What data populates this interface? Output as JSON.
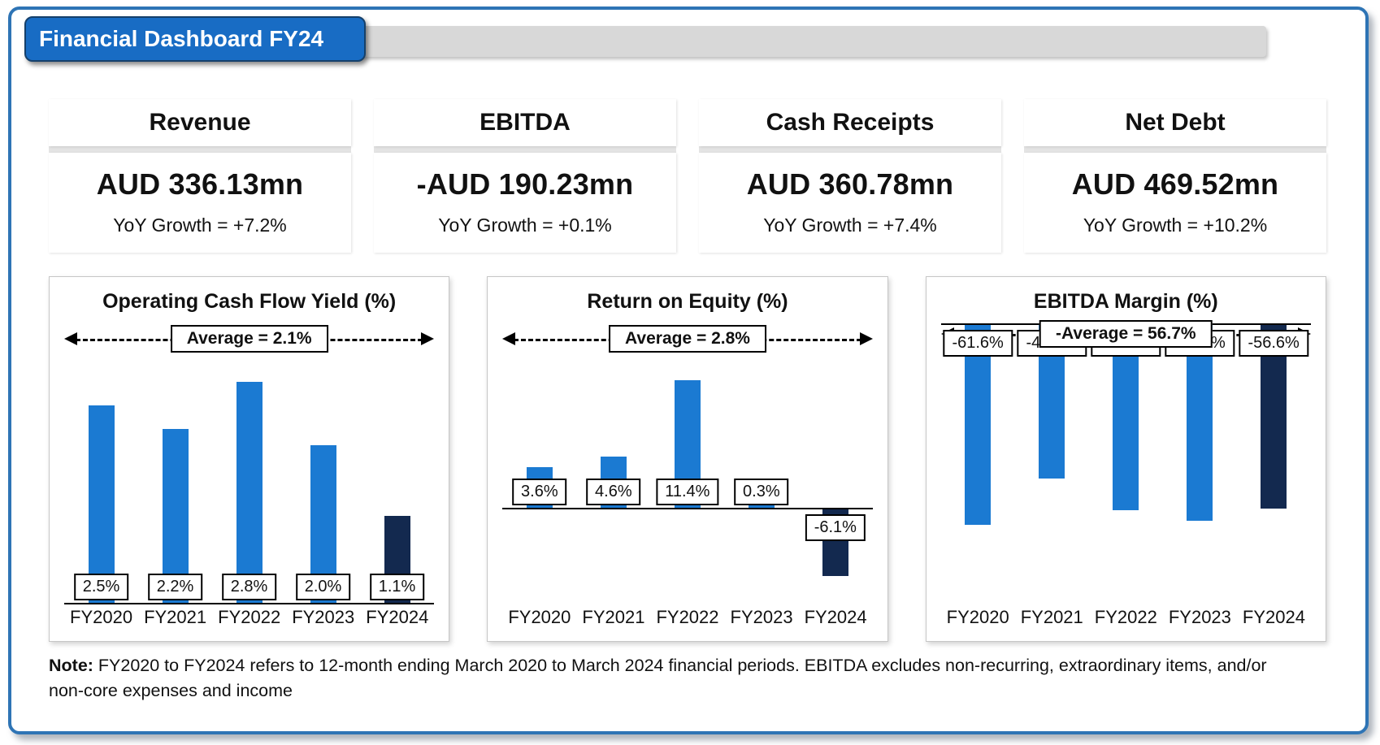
{
  "page": {
    "title": "Financial Dashboard FY24"
  },
  "colors": {
    "bar_primary": "#1b7ad2",
    "bar_highlight": "#13294f",
    "frame_border": "#2e74b5",
    "title_bg": "#186cc4",
    "banner_bg": "#d8d8d8"
  },
  "kpis": [
    {
      "title": "Revenue",
      "value": "AUD 336.13mn",
      "yoy": "YoY Growth = +7.2%"
    },
    {
      "title": "EBITDA",
      "value": "-AUD 190.23mn",
      "yoy": "YoY Growth = +0.1%"
    },
    {
      "title": "Cash Receipts",
      "value": "AUD 360.78mn",
      "yoy": "YoY Growth = +7.4%"
    },
    {
      "title": "Net Debt",
      "value": "AUD 469.52mn",
      "yoy": "YoY Growth = +10.2%"
    }
  ],
  "chart_data": [
    {
      "type": "bar",
      "title": "Operating Cash Flow Yield (%)",
      "categories": [
        "FY2020",
        "FY2021",
        "FY2022",
        "FY2023",
        "FY2024"
      ],
      "values": [
        2.5,
        2.2,
        2.8,
        2.0,
        1.1
      ],
      "labels": [
        "2.5%",
        "2.2%",
        "2.8%",
        "2.0%",
        "1.1%"
      ],
      "average": 2.1,
      "average_label": "Average = 2.1%",
      "baseline": "bottom",
      "highlight_category": "FY2024",
      "ylim": [
        0,
        3.05
      ],
      "grid": false,
      "legend": false
    },
    {
      "type": "bar",
      "title": "Return on Equity (%)",
      "categories": [
        "FY2020",
        "FY2021",
        "FY2022",
        "FY2023",
        "FY2024"
      ],
      "values": [
        3.6,
        4.6,
        11.4,
        0.3,
        -6.1
      ],
      "labels": [
        "3.6%",
        "4.6%",
        "11.4%",
        "0.3%",
        "-6.1%"
      ],
      "average": 2.8,
      "average_label": "Average = 2.8%",
      "baseline": "zero",
      "highlight_category": "FY2024",
      "ylim": [
        -8.5,
        13
      ],
      "grid": false,
      "legend": false
    },
    {
      "type": "bar",
      "title": "EBITDA Margin (%)",
      "categories": [
        "FY2020",
        "FY2021",
        "FY2022",
        "FY2023",
        "FY2024"
      ],
      "values": [
        -61.6,
        -47.4,
        -57.2,
        -60.4,
        -56.6
      ],
      "labels": [
        "-61.6%",
        "-47.4%",
        "-57.2%",
        "-60.4%",
        "-56.6%"
      ],
      "average": -56.7,
      "average_label": "-Average = 56.7%",
      "baseline": "top",
      "highlight_category": "FY2024",
      "ylim": [
        -85,
        0
      ],
      "grid": false,
      "legend": false
    }
  ],
  "note": {
    "prefix": "Note:",
    "text": " FY2020 to FY2024 refers to 12-month ending March 2020 to March 2024 financial periods. EBITDA excludes non-recurring, extraordinary items, and/or non-core expenses and income"
  }
}
